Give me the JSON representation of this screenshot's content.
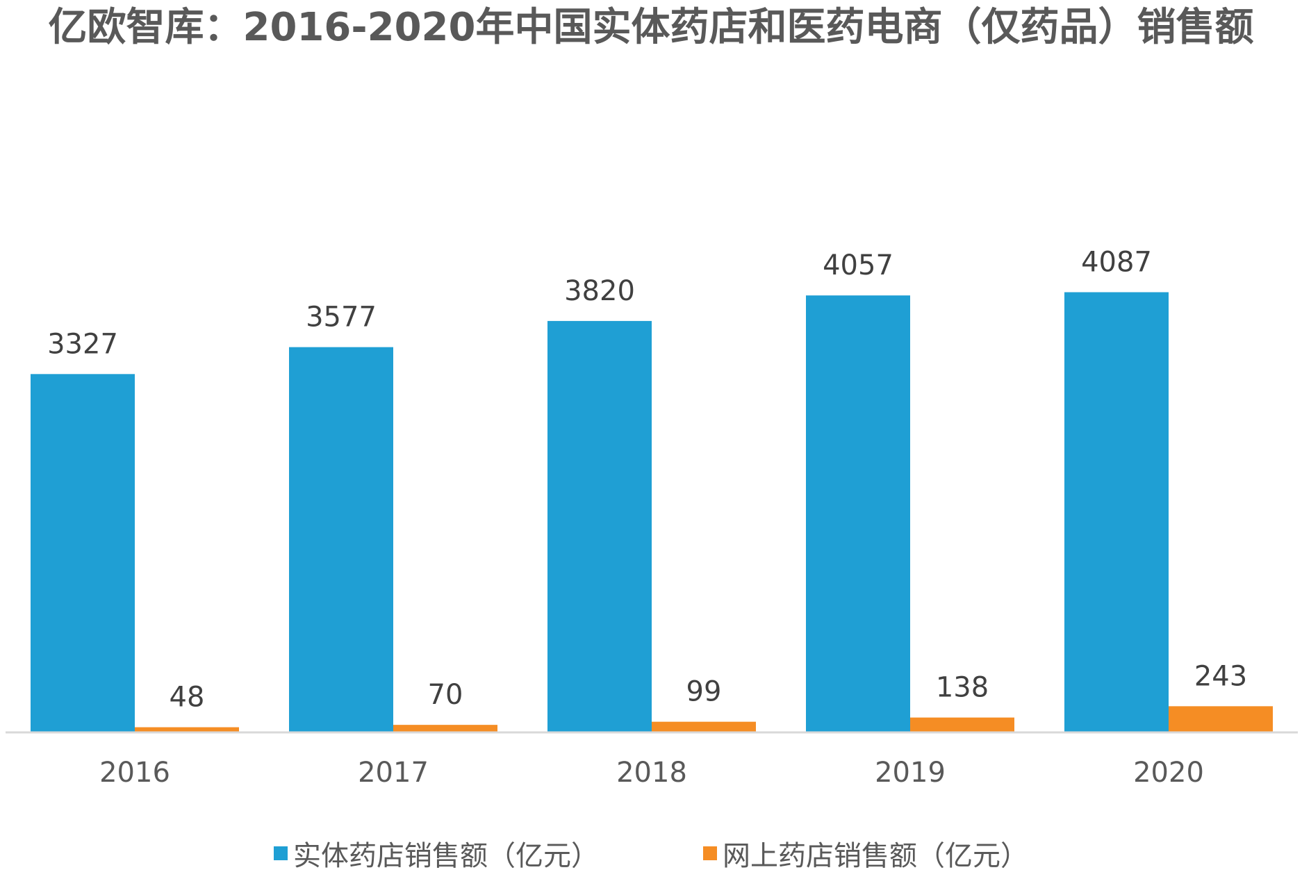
{
  "chart_data": {
    "type": "bar",
    "title": "亿欧智库：2016-2020年中国实体药店和医药电商（仅药品）销售额",
    "xlabel": "",
    "ylabel": "",
    "categories": [
      "2016",
      "2017",
      "2018",
      "2019",
      "2020"
    ],
    "series": [
      {
        "name": "实体药店销售额（亿元）",
        "color": "#1F9FD4",
        "values": [
          3327,
          3577,
          3820,
          4057,
          4087
        ]
      },
      {
        "name": "网上药店销售额（亿元）",
        "color": "#F58D24",
        "values": [
          48,
          70,
          99,
          138,
          243
        ]
      }
    ],
    "ylim": [
      0,
      4500
    ],
    "grid": false,
    "data_labels": true,
    "legend_position": "bottom"
  }
}
